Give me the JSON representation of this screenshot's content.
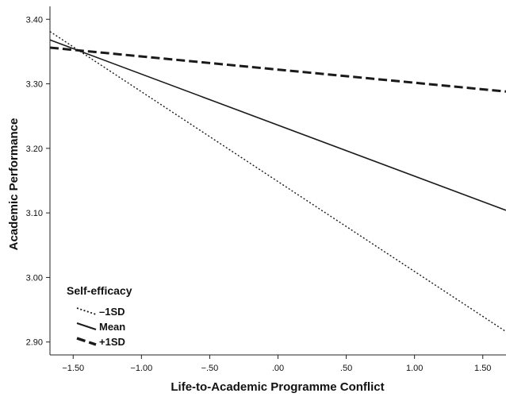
{
  "chart_data": {
    "type": "line",
    "xlabel": "Life-to-Academic Programme Conflict",
    "ylabel": "Academic Performance",
    "xlim": [
      -1.67,
      1.67
    ],
    "ylim": [
      2.88,
      3.42
    ],
    "x_ticks": [
      -1.5,
      -1.0,
      -0.5,
      0.0,
      0.5,
      1.0,
      1.5
    ],
    "x_tick_labels": [
      "−1.50",
      "−1.00",
      "−.50",
      ".00",
      ".50",
      "1.00",
      "1.50"
    ],
    "y_ticks": [
      2.9,
      3.0,
      3.1,
      3.2,
      3.3,
      3.4
    ],
    "y_tick_labels": [
      "2.90",
      "3.00",
      "3.10",
      "3.20",
      "3.30",
      "3.40"
    ],
    "grid": false,
    "legend": {
      "title": "Self-efficacy",
      "position": "bottom-left"
    },
    "series": [
      {
        "name": "–1SD",
        "style": "dotted",
        "x": [
          -1.67,
          1.67
        ],
        "y": [
          3.381,
          2.916
        ]
      },
      {
        "name": "Mean",
        "style": "solid",
        "x": [
          -1.67,
          1.67
        ],
        "y": [
          3.368,
          3.104
        ]
      },
      {
        "name": "+1SD",
        "style": "dashed",
        "x": [
          -1.67,
          1.67
        ],
        "y": [
          3.356,
          3.288
        ]
      }
    ],
    "line_color": "#1a1a1a"
  }
}
